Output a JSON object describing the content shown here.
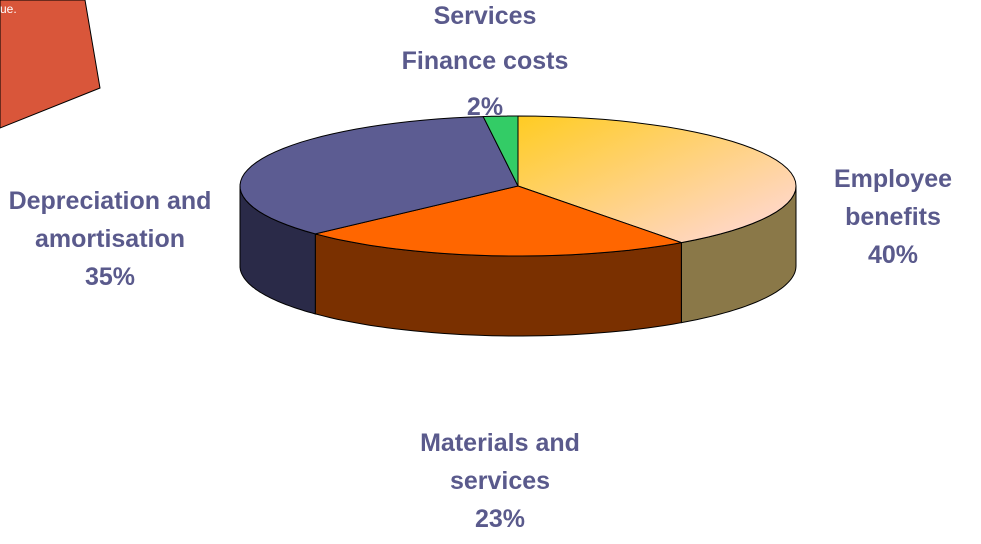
{
  "title": "Services",
  "annotation": "ue.",
  "chart_data": {
    "type": "pie",
    "categories": [
      "Employee benefits",
      "Materials and services",
      "Depreciation and amortisation",
      "Finance costs"
    ],
    "values": [
      40,
      23,
      35,
      2
    ],
    "value_labels": [
      "40%",
      "23%",
      "35%",
      "2%"
    ],
    "colors": [
      "#ffcc33",
      "#ff6600",
      "#5c5c92",
      "#33cc66"
    ]
  }
}
